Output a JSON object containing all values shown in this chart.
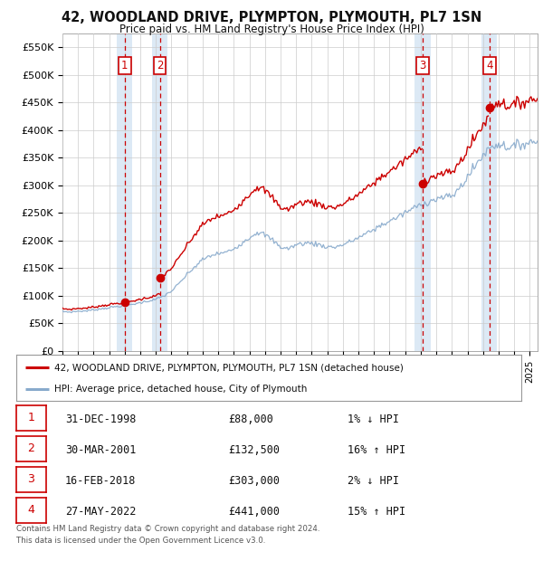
{
  "title_line1": "42, WOODLAND DRIVE, PLYMPTON, PLYMOUTH, PL7 1SN",
  "title_line2": "Price paid vs. HM Land Registry's House Price Index (HPI)",
  "xlim_start": 1995.0,
  "xlim_end": 2025.5,
  "ylim_bottom": 0,
  "ylim_top": 575000,
  "yticks": [
    0,
    50000,
    100000,
    150000,
    200000,
    250000,
    300000,
    350000,
    400000,
    450000,
    500000,
    550000
  ],
  "ytick_labels": [
    "£0",
    "£50K",
    "£100K",
    "£150K",
    "£200K",
    "£250K",
    "£300K",
    "£350K",
    "£400K",
    "£450K",
    "£500K",
    "£550K"
  ],
  "sale_dates_num": [
    1999.0,
    2001.25,
    2018.12,
    2022.41
  ],
  "sale_prices": [
    88000,
    132500,
    303000,
    441000
  ],
  "sale_labels": [
    "1",
    "2",
    "3",
    "4"
  ],
  "price_color": "#cc0000",
  "hpi_color": "#88aacc",
  "shading_color": "#dce9f5",
  "grid_color": "#cccccc",
  "box_color": "#cc0000",
  "background_color": "#ffffff",
  "legend_label1": "42, WOODLAND DRIVE, PLYMPTON, PLYMOUTH, PL7 1SN (detached house)",
  "legend_label2": "HPI: Average price, detached house, City of Plymouth",
  "footer_line1": "Contains HM Land Registry data © Crown copyright and database right 2024.",
  "footer_line2": "This data is licensed under the Open Government Licence v3.0.",
  "table_rows": [
    [
      "1",
      "31-DEC-1998",
      "£88,000",
      "1% ↓ HPI"
    ],
    [
      "2",
      "30-MAR-2001",
      "£132,500",
      "16% ↑ HPI"
    ],
    [
      "3",
      "16-FEB-2018",
      "£303,000",
      "2% ↓ HPI"
    ],
    [
      "4",
      "27-MAY-2022",
      "£441,000",
      "15% ↑ HPI"
    ]
  ],
  "hpi_anchors": [
    [
      1995.0,
      71000
    ],
    [
      1995.5,
      70000
    ],
    [
      1996.0,
      71500
    ],
    [
      1996.5,
      72000
    ],
    [
      1997.0,
      74000
    ],
    [
      1997.5,
      76000
    ],
    [
      1998.0,
      78000
    ],
    [
      1998.5,
      80000
    ],
    [
      1999.0,
      82000
    ],
    [
      1999.5,
      84000
    ],
    [
      2000.0,
      87000
    ],
    [
      2000.5,
      90000
    ],
    [
      2001.0,
      93000
    ],
    [
      2001.5,
      99000
    ],
    [
      2002.0,
      108000
    ],
    [
      2002.5,
      122000
    ],
    [
      2003.0,
      138000
    ],
    [
      2003.5,
      152000
    ],
    [
      2004.0,
      165000
    ],
    [
      2004.5,
      172000
    ],
    [
      2005.0,
      176000
    ],
    [
      2005.5,
      178000
    ],
    [
      2006.0,
      185000
    ],
    [
      2006.5,
      195000
    ],
    [
      2007.0,
      205000
    ],
    [
      2007.5,
      215000
    ],
    [
      2008.0,
      210000
    ],
    [
      2008.5,
      200000
    ],
    [
      2009.0,
      188000
    ],
    [
      2009.5,
      185000
    ],
    [
      2010.0,
      192000
    ],
    [
      2010.5,
      195000
    ],
    [
      2011.0,
      195000
    ],
    [
      2011.5,
      192000
    ],
    [
      2012.0,
      188000
    ],
    [
      2012.5,
      188000
    ],
    [
      2013.0,
      192000
    ],
    [
      2013.5,
      198000
    ],
    [
      2014.0,
      205000
    ],
    [
      2014.5,
      212000
    ],
    [
      2015.0,
      220000
    ],
    [
      2015.5,
      228000
    ],
    [
      2016.0,
      235000
    ],
    [
      2016.5,
      242000
    ],
    [
      2017.0,
      250000
    ],
    [
      2017.5,
      258000
    ],
    [
      2018.0,
      265000
    ],
    [
      2018.5,
      270000
    ],
    [
      2019.0,
      275000
    ],
    [
      2019.5,
      278000
    ],
    [
      2020.0,
      280000
    ],
    [
      2020.5,
      295000
    ],
    [
      2021.0,
      315000
    ],
    [
      2021.5,
      335000
    ],
    [
      2022.0,
      355000
    ],
    [
      2022.5,
      370000
    ],
    [
      2023.0,
      375000
    ],
    [
      2023.5,
      370000
    ],
    [
      2024.0,
      370000
    ],
    [
      2024.5,
      375000
    ],
    [
      2025.0,
      378000
    ],
    [
      2025.5,
      380000
    ]
  ]
}
